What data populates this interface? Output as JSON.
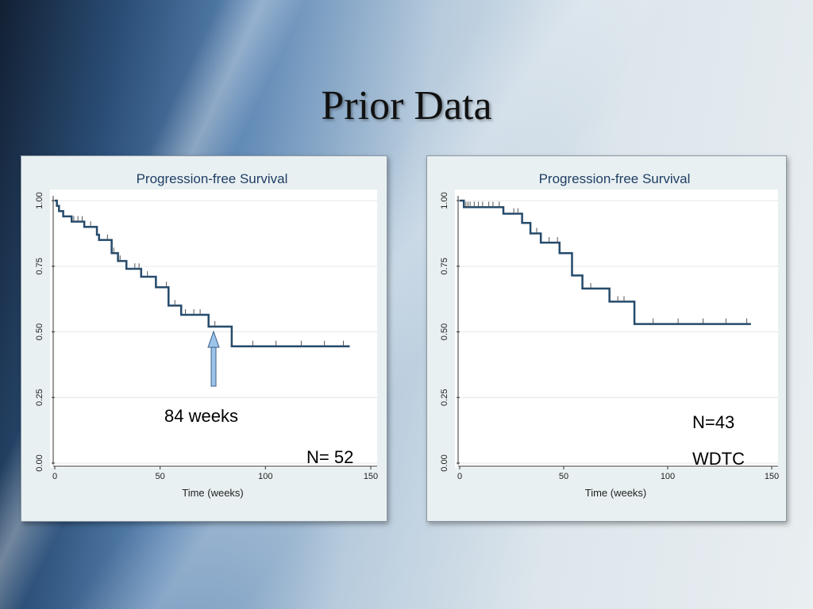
{
  "slide": {
    "title": "Prior Data"
  },
  "annotations": {
    "left_weeks": "84 weeks",
    "left_n": "N= 52",
    "right_n": "N=43",
    "right_type": "WDTC"
  },
  "chart_data": [
    {
      "type": "line",
      "step": true,
      "title": "Progression-free Survival",
      "xlabel": "Time (weeks)",
      "ylabel": "",
      "xlim": [
        0,
        150
      ],
      "ylim": [
        0,
        1
      ],
      "xticks": [
        "0",
        "50",
        "100",
        "150"
      ],
      "yticks": [
        "0.00",
        "0.25",
        "0.50",
        "0.75",
        "1.00"
      ],
      "grid": true,
      "color": "#254a6b",
      "series": [
        {
          "x": [
            0,
            1,
            2,
            4,
            8,
            14,
            20,
            21,
            27,
            30,
            34,
            41,
            48,
            54,
            59,
            60,
            73,
            84,
            140
          ],
          "y": [
            1.0,
            0.98,
            0.96,
            0.94,
            0.92,
            0.9,
            0.87,
            0.85,
            0.8,
            0.77,
            0.74,
            0.71,
            0.67,
            0.6,
            0.6,
            0.565,
            0.52,
            0.445,
            0.445
          ]
        }
      ],
      "censor_times": [
        9,
        11,
        13,
        17,
        25,
        28,
        31,
        38,
        40,
        44,
        53,
        57,
        62,
        66,
        69,
        76,
        94,
        105,
        117,
        128,
        137
      ]
    },
    {
      "type": "line",
      "step": true,
      "title": "Progression-free Survival",
      "xlabel": "Time (weeks)",
      "ylabel": "",
      "xlim": [
        0,
        150
      ],
      "ylim": [
        0,
        1
      ],
      "xticks": [
        "0",
        "50",
        "100",
        "150"
      ],
      "yticks": [
        "0.00",
        "0.25",
        "0.50",
        "0.75",
        "1.00"
      ],
      "grid": true,
      "color": "#254a6b",
      "series": [
        {
          "x": [
            0,
            2,
            21,
            30,
            34,
            39,
            48,
            54,
            59,
            72,
            84,
            140
          ],
          "y": [
            1.0,
            0.975,
            0.95,
            0.915,
            0.875,
            0.84,
            0.8,
            0.715,
            0.665,
            0.615,
            0.53,
            0.53
          ]
        }
      ],
      "censor_times": [
        3,
        4,
        5,
        7,
        9,
        11,
        14,
        16,
        19,
        26,
        28,
        37,
        43,
        47,
        63,
        76,
        79,
        93,
        105,
        117,
        128,
        138
      ]
    }
  ]
}
